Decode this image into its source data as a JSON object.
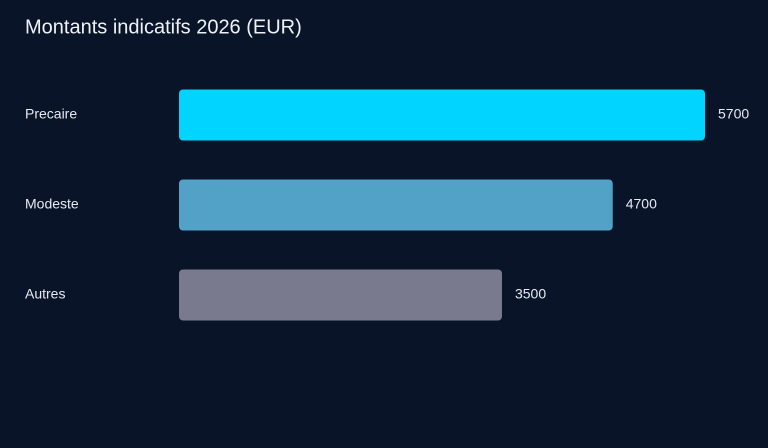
{
  "chart_data": {
    "type": "bar",
    "orientation": "horizontal",
    "title": "Montants indicatifs 2026 (EUR)",
    "categories": [
      "Precaire",
      "Modeste",
      "Autres"
    ],
    "values": [
      5700,
      4700,
      3500
    ],
    "colors": [
      "#00d4ff",
      "#52a2c8",
      "#7a7a8e"
    ]
  }
}
